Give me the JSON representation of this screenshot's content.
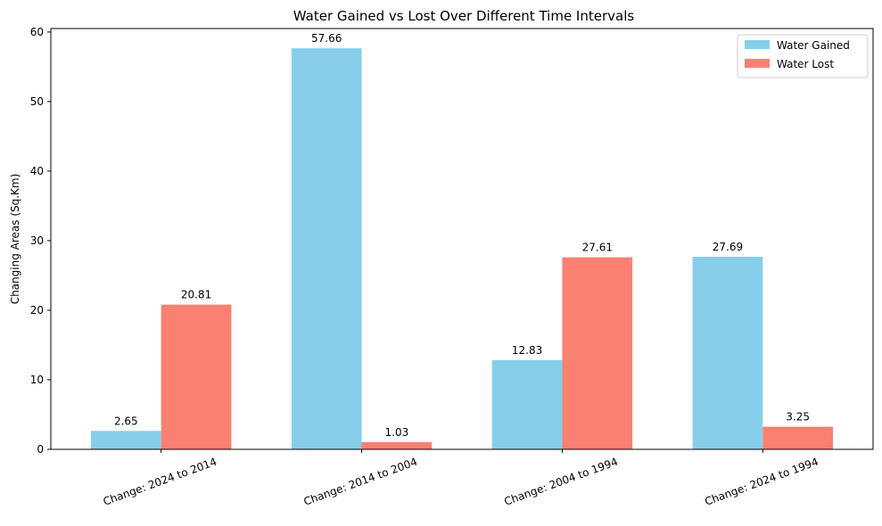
{
  "chart_data": {
    "type": "bar",
    "title": "Water Gained vs Lost Over Different Time Intervals",
    "xlabel": "",
    "ylabel": "Changing Areas (Sq.Km)",
    "categories": [
      "Change: 2024 to 2014",
      "Change: 2014 to 2004",
      "Change: 2004 to 1994",
      "Change: 2024 to 1994"
    ],
    "series": [
      {
        "name": "Water Gained",
        "values": [
          2.65,
          57.66,
          12.83,
          27.69
        ],
        "color": "#87ceeb"
      },
      {
        "name": "Water Lost",
        "values": [
          20.81,
          1.03,
          27.61,
          3.25
        ],
        "color": "#fa8072"
      }
    ],
    "ylim": [
      0,
      60.5
    ],
    "yticks": [
      0,
      10,
      20,
      30,
      40,
      50,
      60
    ],
    "grid": false,
    "legend_position": "top-right",
    "xtick_rotation": -20
  }
}
